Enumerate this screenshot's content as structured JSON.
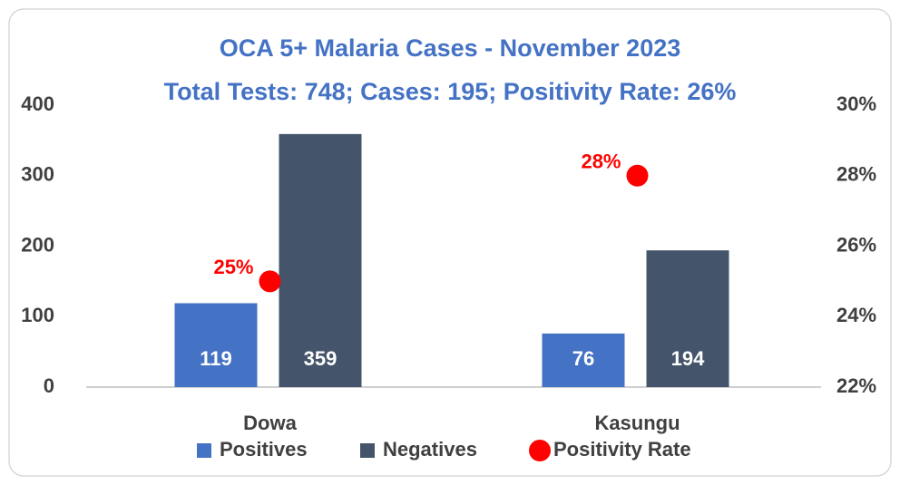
{
  "chart_data": {
    "type": "bar",
    "title": "OCA 5+ Malaria Cases - November 2023",
    "subtitle": "Total Tests: 748; Cases: 195; Positivity Rate: 26%",
    "categories": [
      "Dowa",
      "Kasungu"
    ],
    "series": [
      {
        "name": "Positives",
        "color": "#4472c4",
        "values": [
          119,
          76
        ]
      },
      {
        "name": "Negatives",
        "color": "#44546a",
        "values": [
          359,
          194
        ]
      },
      {
        "name": "Positivity Rate",
        "color": "#ff0000",
        "axis": "y2",
        "type": "scatter",
        "values": [
          25,
          28
        ],
        "value_labels": [
          "25%",
          "28%"
        ]
      }
    ],
    "ylim": [
      0,
      400
    ],
    "yticks": [
      0,
      100,
      200,
      300,
      400
    ],
    "y2lim": [
      22,
      30
    ],
    "y2ticks": [
      {
        "value": 22,
        "label": "22%"
      },
      {
        "value": 24,
        "label": "24%"
      },
      {
        "value": 26,
        "label": "26%"
      },
      {
        "value": 28,
        "label": "28%"
      },
      {
        "value": 30,
        "label": "30%"
      }
    ],
    "grid": false,
    "legend": "bottom"
  }
}
